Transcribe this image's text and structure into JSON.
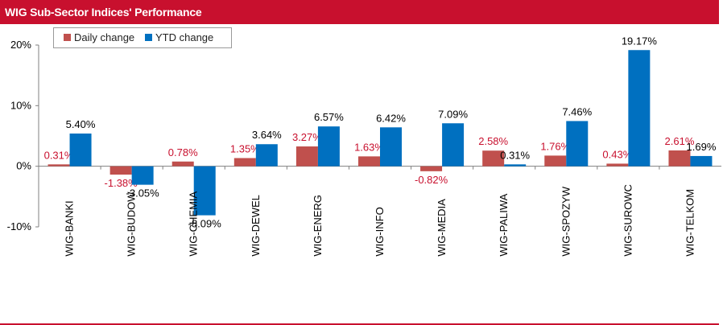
{
  "chart_data": {
    "type": "bar",
    "title": "WIG Sub-Sector Indices' Performance",
    "categories": [
      "WIG-BANKI",
      "WIG-BUDOW",
      "WIG-CHEMIA",
      "WIG-DEWEL",
      "WIG-ENERG",
      "WIG-INFO",
      "WIG-MEDIA",
      "WIG-PALIWA",
      "WIG-SPOZYW",
      "WIG-SUROWC",
      "WIG-TELKOM"
    ],
    "series": [
      {
        "name": "Daily change",
        "color": "#c0504d",
        "label_color": "#c8102e",
        "values": [
          0.31,
          -1.38,
          0.78,
          1.35,
          3.27,
          1.63,
          -0.82,
          2.58,
          1.76,
          0.43,
          2.61
        ],
        "labels": [
          "0.31%",
          "-1.38%",
          "0.78%",
          "1.35%",
          "3.27%",
          "1.63%",
          "-0.82%",
          "2.58%",
          "1.76%",
          "0.43%",
          "2.61%"
        ]
      },
      {
        "name": "YTD change",
        "color": "#0070c0",
        "label_color": "#000000",
        "values": [
          5.4,
          -3.05,
          -8.09,
          3.64,
          6.57,
          6.42,
          7.09,
          0.31,
          7.46,
          19.17,
          1.69
        ],
        "labels": [
          "5.40%",
          "-3.05%",
          "-8.09%",
          "3.64%",
          "6.57%",
          "6.42%",
          "7.09%",
          "0.31%",
          "7.46%",
          "19.17%",
          "1.69%"
        ]
      }
    ],
    "ylim": [
      -10,
      20
    ],
    "yticks": [
      -10,
      0,
      10,
      20
    ],
    "ytick_labels": [
      "-10%",
      "0%",
      "10%",
      "20%"
    ],
    "grid": false,
    "legend": "top-left"
  }
}
